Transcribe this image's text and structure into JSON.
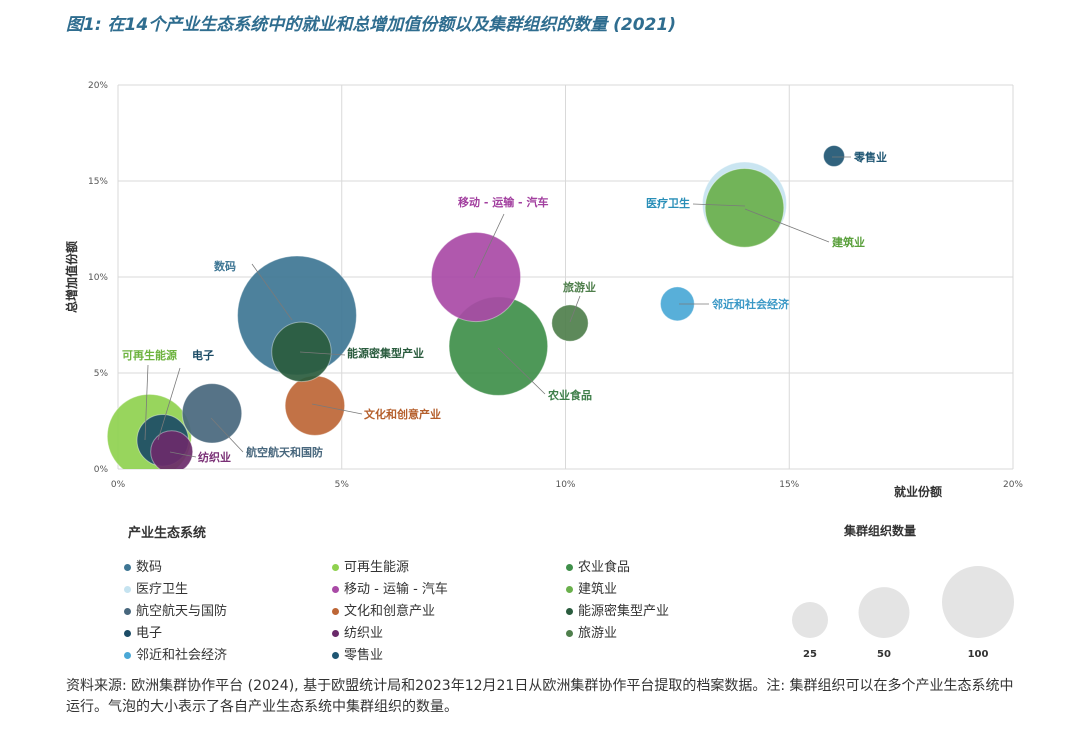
{
  "title": "图1: 在14个产业生态系统中的就业和总增加值份额以及集群组织的数量 (2021)",
  "chart_data": {
    "type": "scatter",
    "subtype": "bubble",
    "xlabel": "就业份额",
    "ylabel": "总增加值份额",
    "xlim": [
      0,
      20
    ],
    "ylim": [
      0,
      20
    ],
    "x_ticks": [
      "0%",
      "5%",
      "10%",
      "15%",
      "20%"
    ],
    "y_ticks": [
      "0%",
      "5%",
      "10%",
      "15%",
      "20%"
    ],
    "grid": true,
    "series": [
      {
        "name": "数码",
        "x": 4.0,
        "y": 8.0,
        "clusters": 160,
        "color": "#3e7694",
        "label_color": "#3e7694"
      },
      {
        "name": "可再生能源",
        "x": 0.7,
        "y": 1.7,
        "clusters": 80,
        "color": "#8fd14f",
        "label_color": "#6db33f"
      },
      {
        "name": "农业食品",
        "x": 8.5,
        "y": 6.4,
        "clusters": 110,
        "color": "#3f8f4a",
        "label_color": "#3f7f4a"
      },
      {
        "name": "医疗卫生",
        "x": 14.0,
        "y": 13.8,
        "clusters": 80,
        "color": "#c5e3f0",
        "label_color": "#2a8fb8"
      },
      {
        "name": "移动 - 运输 - 汽车",
        "x": 8.0,
        "y": 10.0,
        "clusters": 90,
        "color": "#a94aa6",
        "label_color": "#a23f9f"
      },
      {
        "name": "建筑业",
        "x": 14.0,
        "y": 13.6,
        "clusters": 70,
        "color": "#6ab04c",
        "label_color": "#5aa03c"
      },
      {
        "name": "航空航天与国防",
        "x": 2.1,
        "y": 2.9,
        "clusters": 40,
        "color": "#48677d",
        "label_color": "#48677d"
      },
      {
        "name": "文化和创意产业",
        "x": 4.4,
        "y": 3.3,
        "clusters": 40,
        "color": "#bd6636",
        "label_color": "#b55f2c"
      },
      {
        "name": "能源密集型产业",
        "x": 4.1,
        "y": 6.1,
        "clusters": 40,
        "color": "#2a5c3e",
        "label_color": "#2a5c3e"
      },
      {
        "name": "电子",
        "x": 1.0,
        "y": 1.5,
        "clusters": 30,
        "color": "#1c4c66",
        "label_color": "#1c4c66"
      },
      {
        "name": "纺织业",
        "x": 1.2,
        "y": 0.9,
        "clusters": 20,
        "color": "#6a2a6a",
        "label_color": "#7a3076"
      },
      {
        "name": "旅游业",
        "x": 10.1,
        "y": 7.6,
        "clusters": 15,
        "color": "#4f7f4c",
        "label_color": "#4f7f4c"
      },
      {
        "name": "邻近和社会经济",
        "x": 12.5,
        "y": 8.6,
        "clusters": 13,
        "color": "#4aa8d6",
        "label_color": "#3a98c6"
      },
      {
        "name": "零售业",
        "x": 16.0,
        "y": 16.3,
        "clusters": 5,
        "color": "#1f5673",
        "label_color": "#1f5673"
      }
    ],
    "legend_title": "产业生态系统",
    "size_legend": {
      "title": "集群组织数量",
      "values": [
        25,
        50,
        100
      ],
      "labels": [
        "25",
        "50",
        "100"
      ]
    }
  },
  "bubble_labels": {
    "数码": "数码",
    "可再生能源": "可再生能源",
    "电子": "电子",
    "能源密集型产业": "能源密集型产业",
    "文化和创意产业": "文化和创意产业",
    "航空航天和国防": "航空航天和国防",
    "纺织业": "纺织业",
    "移动 - 运输 - 汽车": "移动 - 运输 - 汽车",
    "农业食品": "农业食品",
    "旅游业": "旅游业",
    "医疗卫生": "医疗卫生",
    "建筑业": "建筑业",
    "邻近和社会经济": "邻近和社会经济",
    "零售业": "零售业"
  },
  "source": "资料来源: 欧洲集群协作平台 (2024), 基于欧盟统计局和2023年12月21日从欧洲集群协作平台提取的档案数据。注: 集群组织可以在多个产业生态系统中运行。气泡的大小表示了各自产业生态系统中集群组织的数量。"
}
